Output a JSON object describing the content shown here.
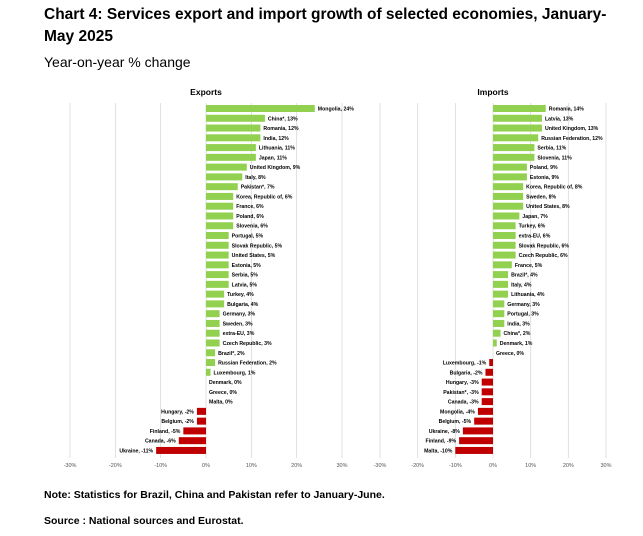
{
  "header": {
    "title": "Chart 4: Services export and import growth of selected economies, January-May 2025",
    "subtitle": "Year-on-year % change"
  },
  "colors": {
    "positive": "#92d050",
    "negative": "#c00000",
    "grid": "#d9d9d9"
  },
  "chart_data": [
    {
      "type": "bar",
      "orientation": "horizontal",
      "title": "Exports",
      "xlim": [
        -30,
        30
      ],
      "xticks": [
        "-30%",
        "-20%",
        "-10%",
        "0%",
        "10%",
        "20%",
        "30%"
      ],
      "grid": true,
      "categories": [
        "Mongolia",
        "China*",
        "Romania",
        "India",
        "Lithuania",
        "Japan",
        "United Kingdom",
        "Italy",
        "Pakistan*",
        "Korea, Republic of",
        "France",
        "Poland",
        "Slovenia",
        "Portugal",
        "Slovak Republic",
        "United States",
        "Estonia",
        "Serbia",
        "Latvia",
        "Turkey",
        "Bulgaria",
        "Germany",
        "Sweden",
        "extra-EU",
        "Czech Republic",
        "Brazil*",
        "Russian Federation",
        "Luxembourg",
        "Denmark",
        "Greece",
        "Malta",
        "Hungary",
        "Belgium",
        "Finland",
        "Canada",
        "Ukraine"
      ],
      "values": [
        24,
        13,
        12,
        12,
        11,
        11,
        9,
        8,
        7,
        6,
        6,
        6,
        6,
        5,
        5,
        5,
        5,
        5,
        5,
        4,
        4,
        3,
        3,
        3,
        3,
        2,
        2,
        1,
        0,
        0,
        0,
        -2,
        -2,
        -5,
        -6,
        -11
      ],
      "labels": [
        "Mongolia, 24%",
        "China*, 13%",
        "Romania, 12%",
        "India, 12%",
        "Lithuania, 11%",
        "Japan, 11%",
        "United Kingdom, 9%",
        "Italy, 8%",
        "Pakistan*, 7%",
        "Korea, Republic of, 6%",
        "France, 6%",
        "Poland, 6%",
        "Slovenia, 6%",
        "Portugal, 5%",
        "Slovak Republic, 5%",
        "United States, 5%",
        "Estonia, 5%",
        "Serbia, 5%",
        "Latvia, 5%",
        "Turkey, 4%",
        "Bulgaria, 4%",
        "Germany, 3%",
        "Sweden, 3%",
        "extra-EU, 3%",
        "Czech Republic, 3%",
        "Brazil*, 2%",
        "Russian Federation, 2%",
        "Luxembourg, 1%",
        "Denmark, 0%",
        "Greece, 0%",
        "Malta, 0%",
        "Hungary, -2%",
        "Belgium, -2%",
        "Finland, -5%",
        "Canada, -6%",
        "Ukraine, -11%"
      ]
    },
    {
      "type": "bar",
      "orientation": "horizontal",
      "title": "Imports",
      "xlim": [
        -30,
        30
      ],
      "xticks": [
        "-30%",
        "-20%",
        "-10%",
        "0%",
        "10%",
        "20%",
        "30%"
      ],
      "grid": true,
      "categories": [
        "Romania",
        "Latvia",
        "United Kingdom",
        "Russian Federation",
        "Serbia",
        "Slovenia",
        "Poland",
        "Estonia",
        "Korea, Republic of",
        "Sweden",
        "United States",
        "Japan",
        "Turkey",
        "extra-EU",
        "Slovak Republic",
        "Czech Republic",
        "France",
        "Brazil*",
        "Italy",
        "Lithuania",
        "Germany",
        "Portugal",
        "India",
        "China*",
        "Denmark",
        "Greece",
        "Luxembourg",
        "Bulgaria",
        "Hungary",
        "Pakistan*",
        "Canada",
        "Mongolia",
        "Belgium",
        "Ukraine",
        "Finland",
        "Malta"
      ],
      "values": [
        14,
        13,
        13,
        12,
        11,
        11,
        9,
        9,
        8,
        8,
        8,
        7,
        6,
        6,
        6,
        6,
        5,
        4,
        4,
        4,
        3,
        3,
        3,
        2,
        1,
        0,
        -1,
        -2,
        -3,
        -3,
        -3,
        -4,
        -5,
        -8,
        -9,
        -10
      ],
      "labels": [
        "Romania, 14%",
        "Latvia, 13%",
        "United Kingdom, 13%",
        "Russian Federation, 12%",
        "Serbia, 11%",
        "Slovenia, 11%",
        "Poland, 9%",
        "Estonia, 9%",
        "Korea, Republic of, 8%",
        "Sweden, 8%",
        "United States, 8%",
        "Japan, 7%",
        "Turkey, 6%",
        "extra-EU, 6%",
        "Slovak Republic, 6%",
        "Czech Republic, 6%",
        "France, 5%",
        "Brazil*, 4%",
        "Italy, 4%",
        "Lithuania, 4%",
        "Germany, 3%",
        "Portugal, 3%",
        "India, 3%",
        "China*, 2%",
        "Denmark, 1%",
        "Greece, 0%",
        "Luxembourg, -1%",
        "Bulgaria, -2%",
        "Hungary, -3%",
        "Pakistan*, -3%",
        "Canada, -3%",
        "Mongolia, -4%",
        "Belgium, -5%",
        "Ukraine, -8%",
        "Finland, -9%",
        "Malta, -10%"
      ]
    }
  ],
  "footer": {
    "note": "Note: Statistics for Brazil, China and Pakistan refer to January-June.",
    "source": "Source : National sources and Eurostat."
  }
}
